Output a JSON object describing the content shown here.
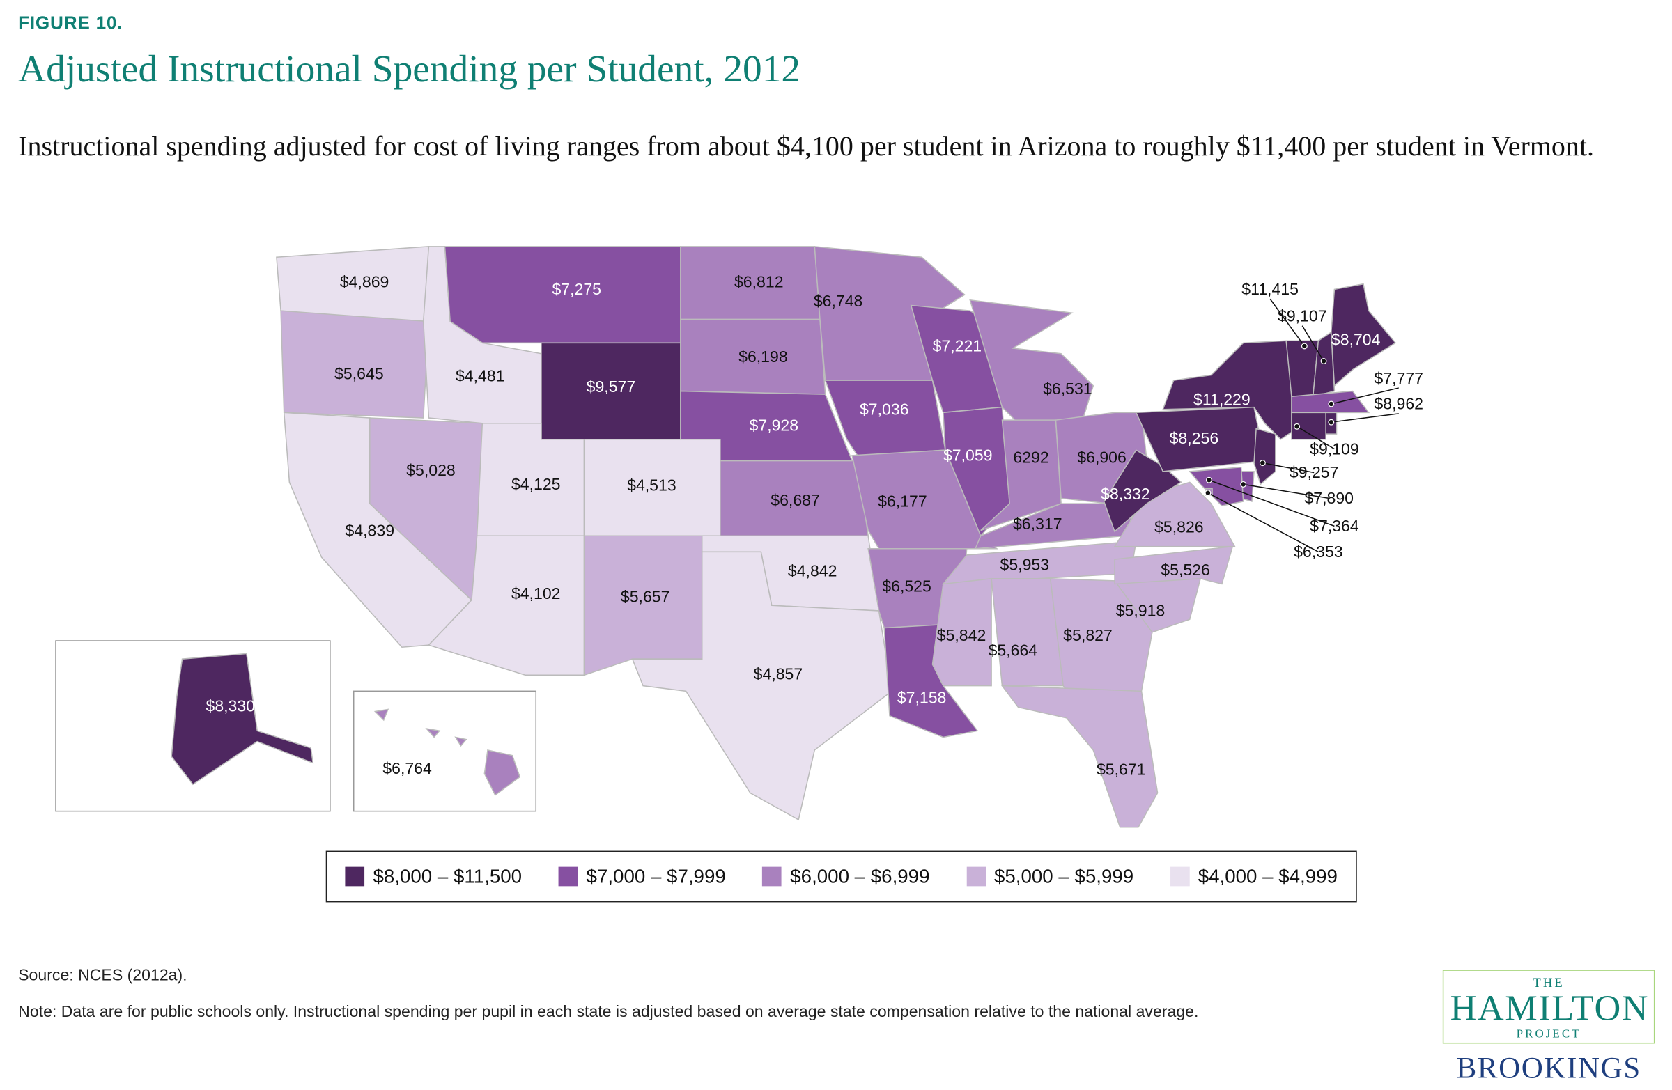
{
  "header": {
    "figure_label": "FIGURE 10.",
    "title": "Adjusted Instructional Spending per Student, 2012",
    "subtitle": "Instructional spending adjusted for cost of living ranges from about $4,100 per student in Arizona to roughly $11,400 per student in Vermont."
  },
  "colors": {
    "bin1": "#4e2760",
    "bin2": "#8650a1",
    "bin3": "#a981be",
    "bin4": "#c9b1d8",
    "bin5": "#e9e1ef",
    "title": "#0f7f73"
  },
  "legend": [
    {
      "label": "$8,000 – $11,500",
      "bin": "bin1"
    },
    {
      "label": "$7,000 – $7,999",
      "bin": "bin2"
    },
    {
      "label": "$6,000 – $6,999",
      "bin": "bin3"
    },
    {
      "label": "$5,000 – $5,999",
      "bin": "bin4"
    },
    {
      "label": "$4,000 – $4,999",
      "bin": "bin5"
    }
  ],
  "chart_data": {
    "type": "choropleth",
    "title": "Adjusted Instructional Spending per Student, 2012",
    "unit": "USD per student",
    "states": [
      {
        "abbr": "WA",
        "value": 4869,
        "label": "$4,869"
      },
      {
        "abbr": "OR",
        "value": 5645,
        "label": "$5,645"
      },
      {
        "abbr": "CA",
        "value": 4839,
        "label": "$4,839"
      },
      {
        "abbr": "NV",
        "value": 5028,
        "label": "$5,028"
      },
      {
        "abbr": "ID",
        "value": 4481,
        "label": "$4,481"
      },
      {
        "abbr": "MT",
        "value": 7275,
        "label": "$7,275"
      },
      {
        "abbr": "WY",
        "value": 9577,
        "label": "$9,577"
      },
      {
        "abbr": "UT",
        "value": 4125,
        "label": "$4,125"
      },
      {
        "abbr": "CO",
        "value": 4513,
        "label": "$4,513"
      },
      {
        "abbr": "AZ",
        "value": 4102,
        "label": "$4,102"
      },
      {
        "abbr": "NM",
        "value": 5657,
        "label": "$5,657"
      },
      {
        "abbr": "ND",
        "value": 6812,
        "label": "$6,812"
      },
      {
        "abbr": "SD",
        "value": 6198,
        "label": "$6,198"
      },
      {
        "abbr": "NE",
        "value": 7928,
        "label": "$7,928"
      },
      {
        "abbr": "KS",
        "value": 6687,
        "label": "$6,687"
      },
      {
        "abbr": "OK",
        "value": 4842,
        "label": "$4,842"
      },
      {
        "abbr": "TX",
        "value": 4857,
        "label": "$4,857"
      },
      {
        "abbr": "MN",
        "value": 6748,
        "label": "$6,748"
      },
      {
        "abbr": "IA",
        "value": 7036,
        "label": "$7,036"
      },
      {
        "abbr": "MO",
        "value": 6177,
        "label": "$6,177"
      },
      {
        "abbr": "AR",
        "value": 6525,
        "label": "$6,525"
      },
      {
        "abbr": "LA",
        "value": 7158,
        "label": "$7,158"
      },
      {
        "abbr": "WI",
        "value": 7221,
        "label": "$7,221"
      },
      {
        "abbr": "IL",
        "value": 7059,
        "label": "$7,059"
      },
      {
        "abbr": "MI",
        "value": 6531,
        "label": "$6,531"
      },
      {
        "abbr": "IN",
        "value": 6292,
        "label": "6292"
      },
      {
        "abbr": "OH",
        "value": 6906,
        "label": "$6,906"
      },
      {
        "abbr": "KY",
        "value": 6317,
        "label": "$6,317"
      },
      {
        "abbr": "TN",
        "value": 5953,
        "label": "$5,953"
      },
      {
        "abbr": "MS",
        "value": 5842,
        "label": "$5,842"
      },
      {
        "abbr": "AL",
        "value": 5664,
        "label": "$5,664"
      },
      {
        "abbr": "GA",
        "value": 5827,
        "label": "$5,827"
      },
      {
        "abbr": "FL",
        "value": 5671,
        "label": "$5,671"
      },
      {
        "abbr": "SC",
        "value": 5918,
        "label": "$5,918"
      },
      {
        "abbr": "NC",
        "value": 5526,
        "label": "$5,526"
      },
      {
        "abbr": "VA",
        "value": 5826,
        "label": "$5,826"
      },
      {
        "abbr": "WV",
        "value": 8332,
        "label": "$8,332"
      },
      {
        "abbr": "PA",
        "value": 8256,
        "label": "$8,256"
      },
      {
        "abbr": "NY",
        "value": 11229,
        "label": "$11,229"
      },
      {
        "abbr": "VT",
        "value": 11415,
        "label": "$11,415"
      },
      {
        "abbr": "NH",
        "value": 9107,
        "label": "$9,107"
      },
      {
        "abbr": "ME",
        "value": 8704,
        "label": "$8,704"
      },
      {
        "abbr": "MA",
        "value": 7777,
        "label": "$7,777"
      },
      {
        "abbr": "RI",
        "value": 8962,
        "label": "$8,962"
      },
      {
        "abbr": "CT",
        "value": 9109,
        "label": "$9,109"
      },
      {
        "abbr": "NJ",
        "value": 9257,
        "label": "$9,257"
      },
      {
        "abbr": "DE",
        "value": 7890,
        "label": "$7,890"
      },
      {
        "abbr": "MD",
        "value": 7364,
        "label": "$7,364"
      },
      {
        "abbr": "DC",
        "value": 6353,
        "label": "$6,353"
      },
      {
        "abbr": "AK",
        "value": 8330,
        "label": "$8,330"
      },
      {
        "abbr": "HI",
        "value": 6764,
        "label": "$6,764"
      }
    ]
  },
  "footer": {
    "source": "Source: NCES (2012a).",
    "note": "Note: Data are for public schools only. Instructional spending per pupil in each state is adjusted based on average state compensation relative to the national average."
  },
  "logo": {
    "the": "THE",
    "hamilton": "HAMILTON",
    "project": "PROJECT",
    "brookings": "BROOKINGS"
  }
}
